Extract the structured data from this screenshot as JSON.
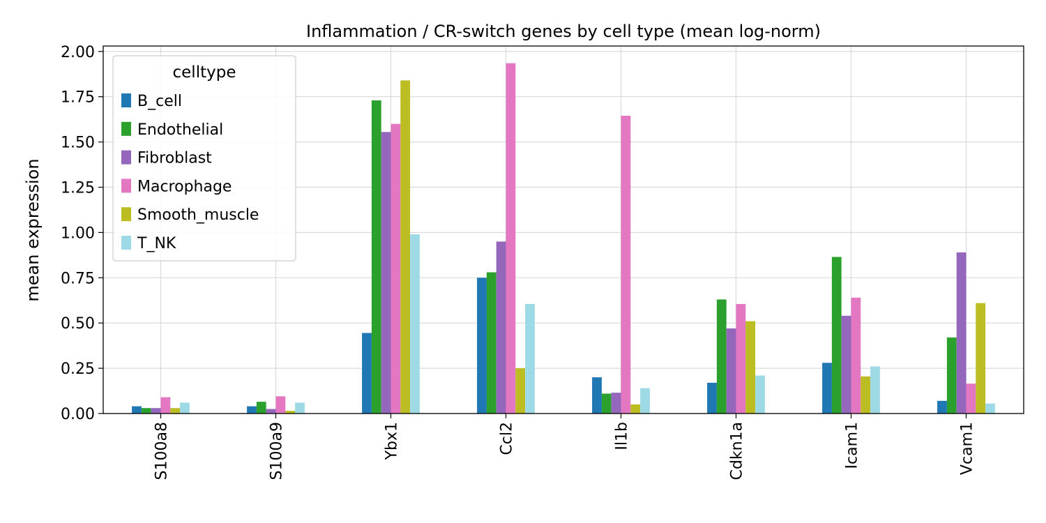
{
  "chart_data": {
    "type": "bar",
    "title": "Inflammation / CR-switch genes by cell type (mean log-norm)",
    "xlabel": "",
    "ylabel": "mean expression",
    "ylim": [
      0,
      2.03
    ],
    "yticks": [
      "0.00",
      "0.25",
      "0.50",
      "0.75",
      "1.00",
      "1.25",
      "1.50",
      "1.75",
      "2.00"
    ],
    "ytick_values": [
      0,
      0.25,
      0.5,
      0.75,
      1.0,
      1.25,
      1.5,
      1.75,
      2.0
    ],
    "grid": true,
    "legend_position": "top-left",
    "legend_title": "celltype",
    "categories": [
      "S100a8",
      "S100a9",
      "Ybx1",
      "Ccl2",
      "Il1b",
      "Cdkn1a",
      "Icam1",
      "Vcam1"
    ],
    "series": [
      {
        "name": "B_cell",
        "color": "#1f77b4",
        "values": [
          0.04,
          0.04,
          0.445,
          0.75,
          0.2,
          0.17,
          0.28,
          0.07
        ]
      },
      {
        "name": "Endothelial",
        "color": "#2ca02c",
        "values": [
          0.03,
          0.065,
          1.73,
          0.78,
          0.11,
          0.63,
          0.865,
          0.42
        ]
      },
      {
        "name": "Fibroblast",
        "color": "#9467bd",
        "values": [
          0.03,
          0.025,
          1.555,
          0.95,
          0.115,
          0.47,
          0.54,
          0.89
        ]
      },
      {
        "name": "Macrophage",
        "color": "#e377c2",
        "values": [
          0.09,
          0.095,
          1.6,
          1.935,
          1.645,
          0.605,
          0.64,
          0.165
        ]
      },
      {
        "name": "Smooth_muscle",
        "color": "#bcbd22",
        "values": [
          0.03,
          0.015,
          1.84,
          0.25,
          0.05,
          0.51,
          0.205,
          0.61
        ]
      },
      {
        "name": "T_NK",
        "color": "#9edae5",
        "values": [
          0.06,
          0.06,
          0.99,
          0.605,
          0.14,
          0.21,
          0.26,
          0.055
        ]
      }
    ]
  }
}
